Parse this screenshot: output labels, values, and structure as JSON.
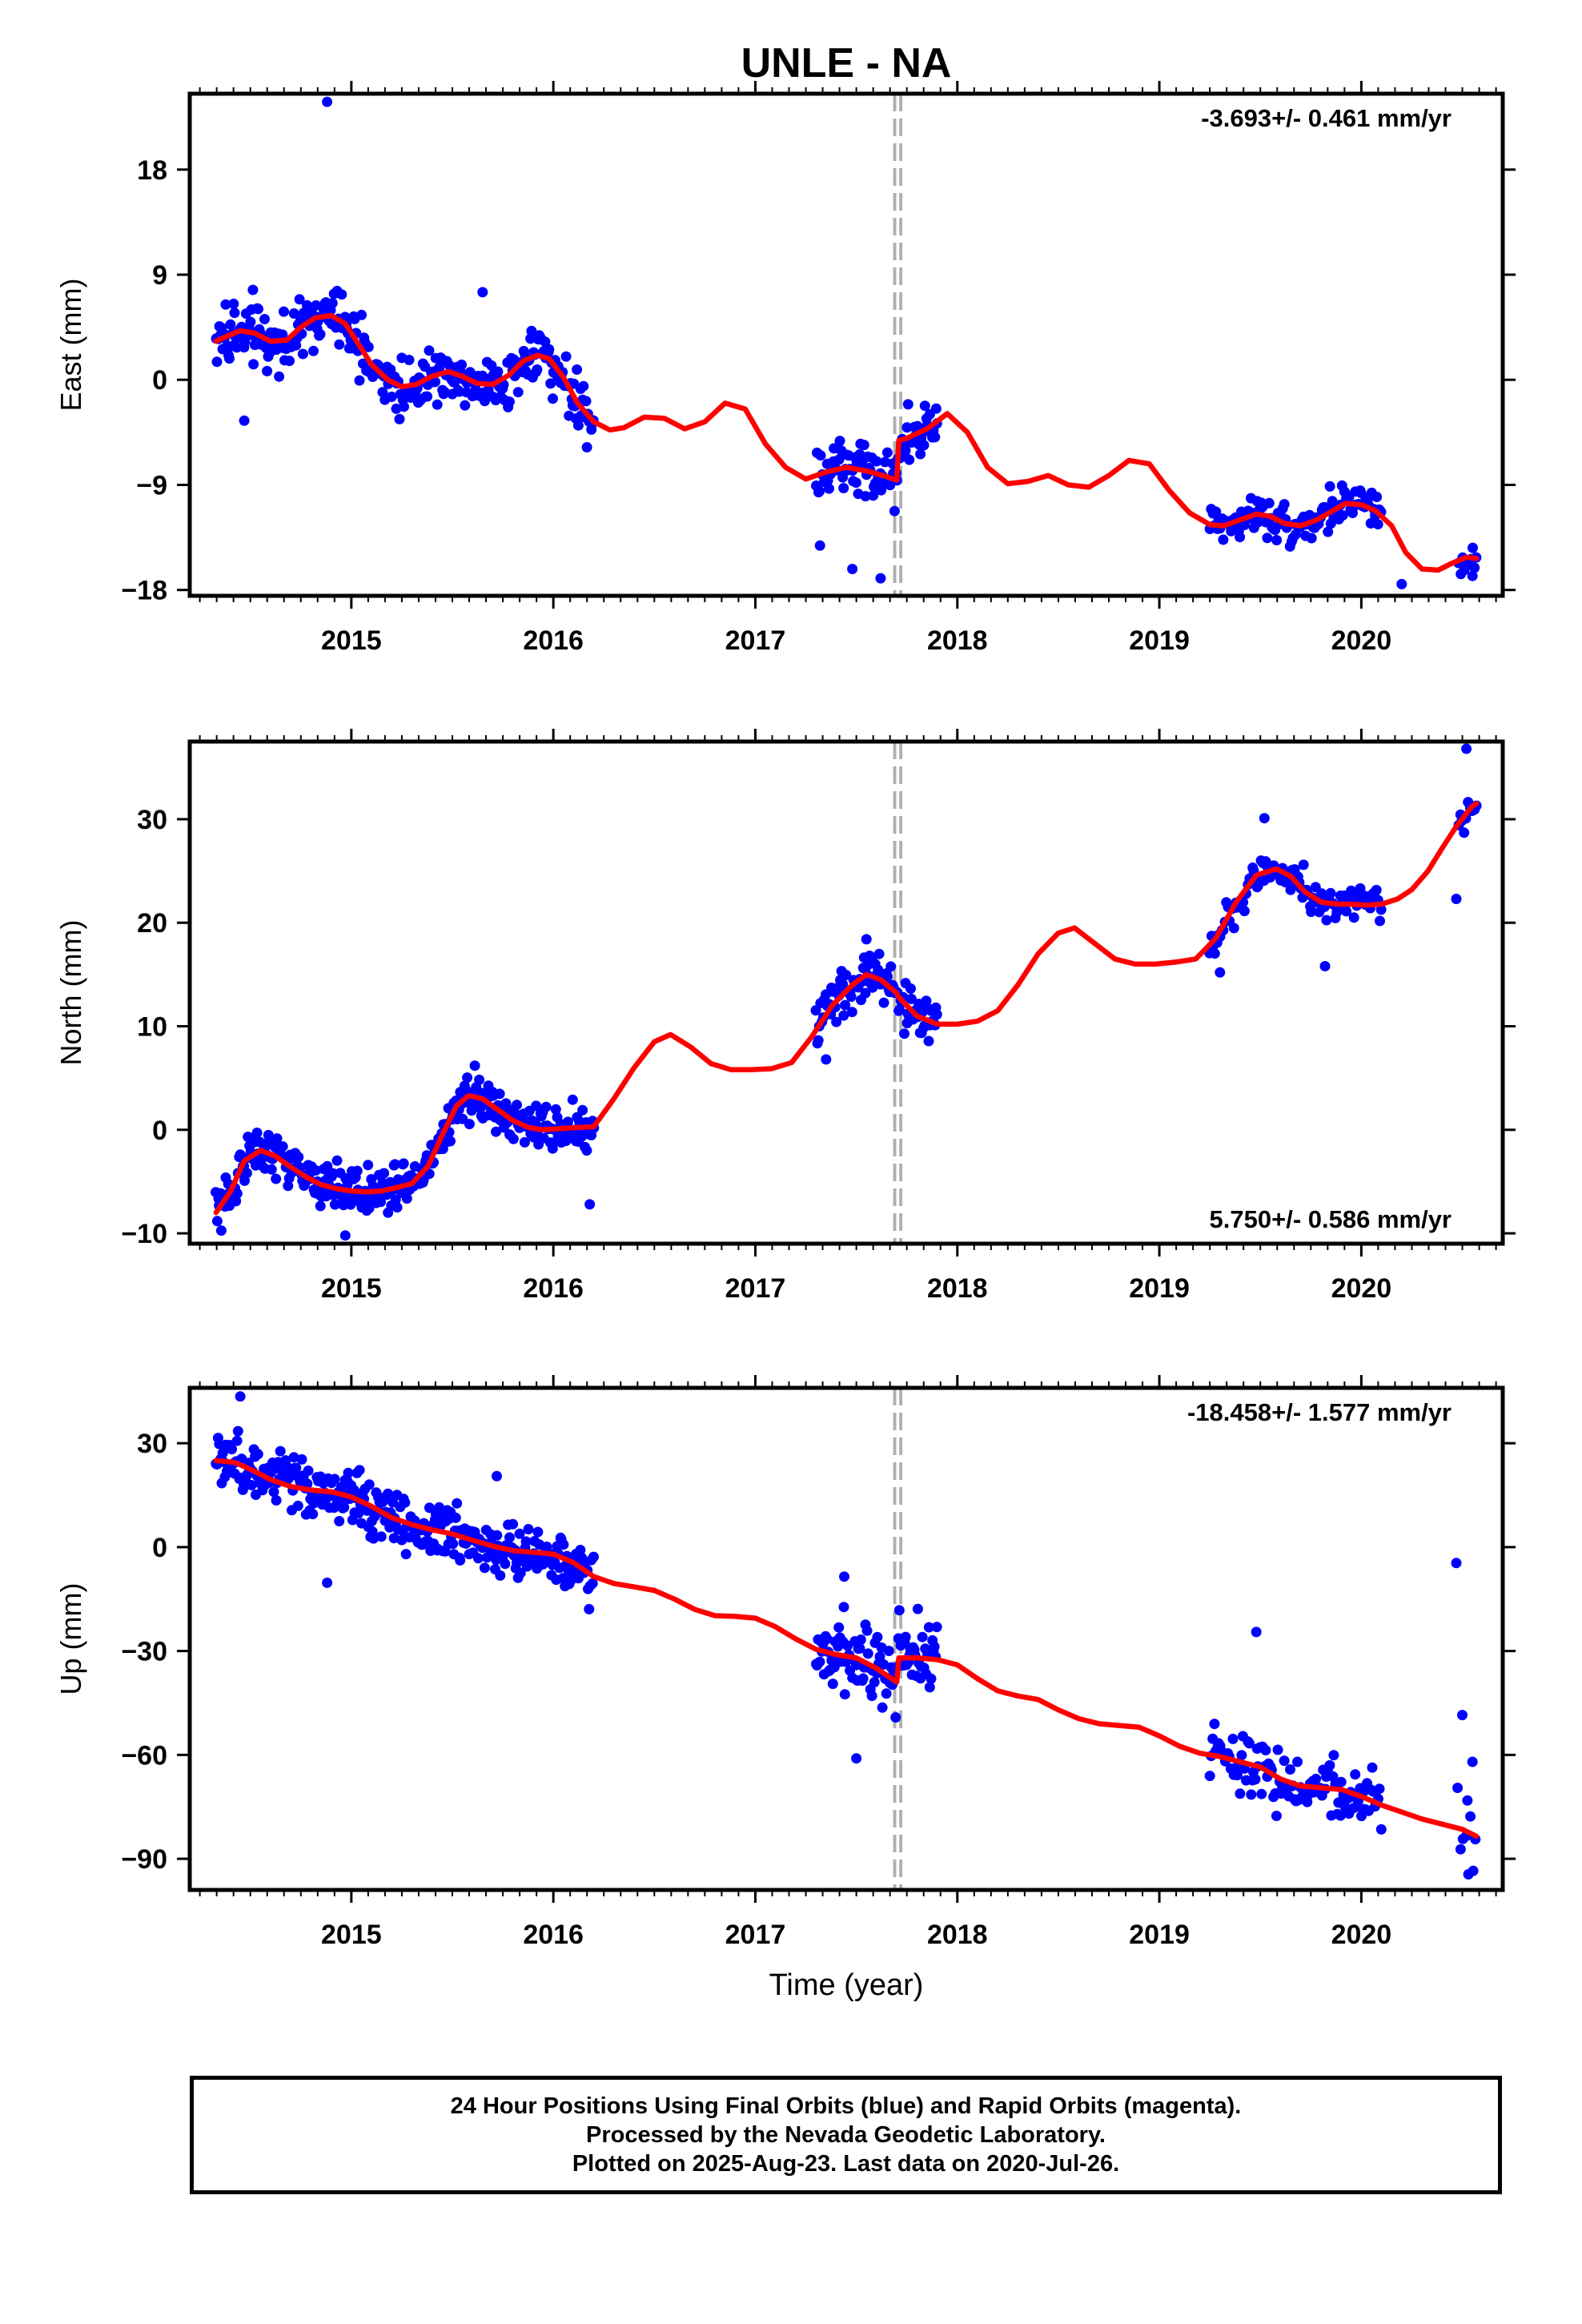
{
  "chart_data": [
    {
      "type": "scatter",
      "title": "UNLE - NA",
      "ylabel": "East (mm)",
      "xlabel": "",
      "xlim": [
        2014.2,
        2020.7
      ],
      "ylim": [
        -18.5,
        24.5
      ],
      "yticks": [
        18,
        9,
        0,
        -9,
        -18
      ],
      "ytick_labels": [
        "18",
        "9",
        "0",
        "−9",
        "−18"
      ],
      "xticks": [
        2015,
        2016,
        2017,
        2018,
        2019,
        2020
      ],
      "xtick_labels": [
        "2015",
        "2016",
        "2017",
        "2018",
        "2019",
        "2020"
      ],
      "rate_annotation": "-3.693+/- 0.461 mm/yr",
      "annotation_position": "top-right",
      "offset_lines_x": [
        2017.69,
        2017.72
      ],
      "series": [
        {
          "kind": "points",
          "color": "#0000ff",
          "segments": [
            {
              "t0": 2014.33,
              "t1": 2016.2,
              "step": 0.0055,
              "noise": 1.7
            },
            {
              "t0": 2017.3,
              "t1": 2017.9,
              "step": 0.006,
              "noise": 1.6
            },
            {
              "t0": 2019.25,
              "t1": 2020.1,
              "step": 0.0075,
              "noise": 1.2
            },
            {
              "t0": 2020.48,
              "t1": 2020.57,
              "step": 0.01,
              "noise": 1.2
            }
          ],
          "outliers": [
            {
              "x": 2014.88,
              "y": 23.8
            },
            {
              "x": 2014.47,
              "y": -3.5
            },
            {
              "x": 2015.65,
              "y": 7.5
            },
            {
              "x": 2017.32,
              "y": -14.2
            },
            {
              "x": 2017.48,
              "y": -16.2
            },
            {
              "x": 2017.62,
              "y": -17.0
            },
            {
              "x": 2020.2,
              "y": -17.5
            },
            {
              "x": 2020.55,
              "y": -16.8
            }
          ]
        },
        {
          "kind": "model",
          "color": "#ff0000",
          "x": [
            2014.33,
            2014.38,
            2014.45,
            2014.52,
            2014.6,
            2014.68,
            2014.75,
            2014.82,
            2014.9,
            2014.97,
            2015.03,
            2015.1,
            2015.18,
            2015.25,
            2015.32,
            2015.4,
            2015.48,
            2015.55,
            2015.62,
            2015.7,
            2015.78,
            2015.85,
            2015.92,
            2015.98,
            2016.05,
            2016.12,
            2016.2,
            2016.28,
            2016.35,
            2016.45,
            2016.55,
            2016.65,
            2016.75,
            2016.85,
            2016.95,
            2017.05,
            2017.15,
            2017.25,
            2017.35,
            2017.45,
            2017.55,
            2017.65,
            2017.7,
            2017.71,
            2017.75,
            2017.85,
            2017.95,
            2018.05,
            2018.15,
            2018.25,
            2018.35,
            2018.45,
            2018.55,
            2018.65,
            2018.75,
            2018.85,
            2018.95,
            2019.05,
            2019.15,
            2019.25,
            2019.32,
            2019.4,
            2019.48,
            2019.55,
            2019.62,
            2019.7,
            2019.78,
            2019.85,
            2019.92,
            2020.0,
            2020.07,
            2020.15,
            2020.22,
            2020.3,
            2020.38,
            2020.45,
            2020.52,
            2020.57
          ],
          "y": [
            3.3,
            3.7,
            4.2,
            4.0,
            3.3,
            3.4,
            4.5,
            5.3,
            5.5,
            4.8,
            3.2,
            1.3,
            0.0,
            -0.6,
            -0.4,
            0.3,
            0.7,
            0.3,
            -0.3,
            -0.4,
            0.4,
            1.6,
            2.1,
            1.8,
            0.2,
            -2.0,
            -3.6,
            -4.3,
            -4.1,
            -3.2,
            -3.3,
            -4.2,
            -3.6,
            -2.0,
            -2.5,
            -5.5,
            -7.5,
            -8.5,
            -7.9,
            -7.5,
            -7.8,
            -8.3,
            -8.6,
            -5.2,
            -5.0,
            -4.2,
            -2.9,
            -4.5,
            -7.5,
            -8.9,
            -8.7,
            -8.2,
            -9.0,
            -9.2,
            -8.2,
            -6.9,
            -7.2,
            -9.5,
            -11.4,
            -12.4,
            -12.5,
            -12.0,
            -11.5,
            -11.7,
            -12.3,
            -12.5,
            -12.0,
            -11.3,
            -10.6,
            -10.7,
            -11.2,
            -12.5,
            -14.8,
            -16.2,
            -16.3,
            -15.7,
            -15.2,
            -15.3
          ]
        }
      ]
    },
    {
      "type": "scatter",
      "ylabel": "North (mm)",
      "xlabel": "",
      "xlim": [
        2014.2,
        2020.7
      ],
      "ylim": [
        -11,
        37.5
      ],
      "yticks": [
        30,
        20,
        10,
        0,
        -10
      ],
      "ytick_labels": [
        "30",
        "20",
        "10",
        "0",
        "−10"
      ],
      "xticks": [
        2015,
        2016,
        2017,
        2018,
        2019,
        2020
      ],
      "xtick_labels": [
        "2015",
        "2016",
        "2017",
        "2018",
        "2019",
        "2020"
      ],
      "rate_annotation": "5.750+/- 0.586 mm/yr",
      "annotation_position": "bottom-right",
      "offset_lines_x": [
        2017.69,
        2017.72
      ],
      "series": [
        {
          "kind": "points",
          "color": "#0000ff",
          "segments": [
            {
              "t0": 2014.33,
              "t1": 2016.2,
              "step": 0.0055,
              "noise": 1.6
            },
            {
              "t0": 2017.3,
              "t1": 2017.9,
              "step": 0.006,
              "noise": 1.5
            },
            {
              "t0": 2019.25,
              "t1": 2020.1,
              "step": 0.0075,
              "noise": 1.2
            },
            {
              "t0": 2020.48,
              "t1": 2020.57,
              "step": 0.01,
              "noise": 1.4
            }
          ],
          "outliers": [
            {
              "x": 2014.97,
              "y": -10.2
            },
            {
              "x": 2016.18,
              "y": -7.2
            },
            {
              "x": 2017.35,
              "y": 6.8
            },
            {
              "x": 2017.55,
              "y": 18.4
            },
            {
              "x": 2019.3,
              "y": 15.2
            },
            {
              "x": 2019.52,
              "y": 30.1
            },
            {
              "x": 2019.82,
              "y": 15.8
            },
            {
              "x": 2020.47,
              "y": 22.3
            },
            {
              "x": 2020.52,
              "y": 36.8
            }
          ]
        },
        {
          "kind": "model",
          "color": "#ff0000",
          "x": [
            2014.33,
            2014.4,
            2014.47,
            2014.55,
            2014.62,
            2014.7,
            2014.78,
            2014.85,
            2014.93,
            2015.0,
            2015.08,
            2015.15,
            2015.22,
            2015.3,
            2015.38,
            2015.45,
            2015.52,
            2015.58,
            2015.65,
            2015.72,
            2015.8,
            2015.88,
            2015.95,
            2016.02,
            2016.1,
            2016.2,
            2016.3,
            2016.4,
            2016.5,
            2016.58,
            2016.68,
            2016.78,
            2016.88,
            2016.98,
            2017.08,
            2017.18,
            2017.28,
            2017.38,
            2017.48,
            2017.55,
            2017.62,
            2017.7,
            2017.71,
            2017.8,
            2017.9,
            2018.0,
            2018.1,
            2018.2,
            2018.3,
            2018.4,
            2018.5,
            2018.58,
            2018.68,
            2018.78,
            2018.88,
            2018.98,
            2019.08,
            2019.18,
            2019.28,
            2019.38,
            2019.48,
            2019.58,
            2019.65,
            2019.72,
            2019.8,
            2019.88,
            2019.95,
            2020.02,
            2020.1,
            2020.18,
            2020.25,
            2020.33,
            2020.4,
            2020.47,
            2020.55,
            2020.57
          ],
          "y": [
            -8.0,
            -6.0,
            -3.0,
            -2.0,
            -2.5,
            -3.6,
            -4.6,
            -5.3,
            -5.7,
            -5.9,
            -6.0,
            -5.9,
            -5.6,
            -5.2,
            -3.5,
            -0.5,
            2.3,
            3.3,
            3.0,
            2.0,
            0.9,
            0.2,
            0.0,
            0.1,
            0.2,
            0.3,
            3.0,
            6.0,
            8.5,
            9.2,
            8.0,
            6.4,
            5.8,
            5.8,
            5.9,
            6.5,
            9.0,
            12.0,
            14.0,
            15.0,
            14.5,
            13.2,
            12.8,
            11.0,
            10.2,
            10.2,
            10.5,
            11.5,
            14.0,
            17.0,
            19.0,
            19.5,
            18.0,
            16.5,
            16.0,
            16.0,
            16.2,
            16.5,
            18.5,
            22.0,
            24.6,
            25.2,
            24.5,
            23.0,
            22.0,
            21.8,
            21.8,
            21.7,
            21.8,
            22.3,
            23.2,
            25.0,
            27.2,
            29.3,
            31.3,
            31.5
          ]
        }
      ]
    },
    {
      "type": "scatter",
      "ylabel": "Up (mm)",
      "xlabel": "Time (year)",
      "xlim": [
        2014.2,
        2020.7
      ],
      "ylim": [
        -99,
        46
      ],
      "yticks": [
        30,
        0,
        -30,
        -60,
        -90
      ],
      "ytick_labels": [
        "30",
        "0",
        "−30",
        "−60",
        "−90"
      ],
      "xticks": [
        2015,
        2016,
        2017,
        2018,
        2019,
        2020
      ],
      "xtick_labels": [
        "2015",
        "2016",
        "2017",
        "2018",
        "2019",
        "2020"
      ],
      "rate_annotation": "-18.458+/- 1.577 mm/yr",
      "annotation_position": "top-right",
      "offset_lines_x": [
        2017.69,
        2017.72
      ],
      "series": [
        {
          "kind": "points",
          "color": "#0000ff",
          "segments": [
            {
              "t0": 2014.33,
              "t1": 2016.2,
              "step": 0.0055,
              "noise": 5.5
            },
            {
              "t0": 2017.3,
              "t1": 2017.9,
              "step": 0.006,
              "noise": 7.0
            },
            {
              "t0": 2019.25,
              "t1": 2020.1,
              "step": 0.0075,
              "noise": 6.0
            },
            {
              "t0": 2020.48,
              "t1": 2020.57,
              "step": 0.012,
              "noise": 10.0
            }
          ],
          "outliers": [
            {
              "x": 2014.45,
              "y": 43.5
            },
            {
              "x": 2014.88,
              "y": -10.3
            },
            {
              "x": 2015.72,
              "y": 20.5
            },
            {
              "x": 2017.44,
              "y": -8.5
            },
            {
              "x": 2017.5,
              "y": -61.0
            },
            {
              "x": 2019.48,
              "y": -24.5
            },
            {
              "x": 2020.47,
              "y": -4.6
            },
            {
              "x": 2020.5,
              "y": -48.5
            },
            {
              "x": 2020.53,
              "y": -94.5
            },
            {
              "x": 2020.55,
              "y": -62.0
            }
          ]
        },
        {
          "kind": "model",
          "color": "#ff0000",
          "x": [
            2014.33,
            2014.42,
            2014.5,
            2014.6,
            2014.7,
            2014.8,
            2014.9,
            2015.0,
            2015.1,
            2015.2,
            2015.3,
            2015.4,
            2015.5,
            2015.6,
            2015.7,
            2015.8,
            2015.9,
            2016.0,
            2016.1,
            2016.2,
            2016.3,
            2016.4,
            2016.5,
            2016.6,
            2016.7,
            2016.8,
            2016.9,
            2017.0,
            2017.1,
            2017.2,
            2017.3,
            2017.4,
            2017.5,
            2017.6,
            2017.7,
            2017.71,
            2017.8,
            2017.9,
            2018.0,
            2018.1,
            2018.2,
            2018.3,
            2018.4,
            2018.5,
            2018.6,
            2018.7,
            2018.8,
            2018.9,
            2019.0,
            2019.1,
            2019.2,
            2019.3,
            2019.4,
            2019.5,
            2019.6,
            2019.7,
            2019.8,
            2019.9,
            2020.0,
            2020.1,
            2020.2,
            2020.3,
            2020.4,
            2020.5,
            2020.57
          ],
          "y": [
            25.0,
            24.5,
            22.5,
            19.5,
            17.5,
            16.5,
            16.0,
            14.5,
            11.8,
            8.5,
            6.5,
            5.0,
            3.8,
            2.0,
            0.3,
            -1.0,
            -1.5,
            -2.0,
            -4.5,
            -8.5,
            -10.5,
            -11.5,
            -12.5,
            -15.0,
            -18.0,
            -19.8,
            -20.0,
            -20.5,
            -23.0,
            -26.5,
            -29.5,
            -31.0,
            -32.0,
            -35.0,
            -39.0,
            -32.0,
            -32.0,
            -32.5,
            -34.0,
            -38.0,
            -41.5,
            -43.0,
            -44.0,
            -47.0,
            -49.5,
            -51.0,
            -51.5,
            -52.0,
            -54.5,
            -57.5,
            -59.5,
            -60.5,
            -62.0,
            -63.5,
            -67.0,
            -69.0,
            -69.5,
            -70.0,
            -72.0,
            -74.5,
            -76.5,
            -78.5,
            -80.0,
            -81.5,
            -83.5
          ]
        }
      ]
    }
  ],
  "footer": {
    "line1": "24 Hour Positions Using Final Orbits (blue) and Rapid Orbits (magenta).",
    "line2": "Processed by the Nevada Geodetic Laboratory.",
    "line3": "Plotted on 2025-Aug-23. Last data on 2020-Jul-26."
  }
}
